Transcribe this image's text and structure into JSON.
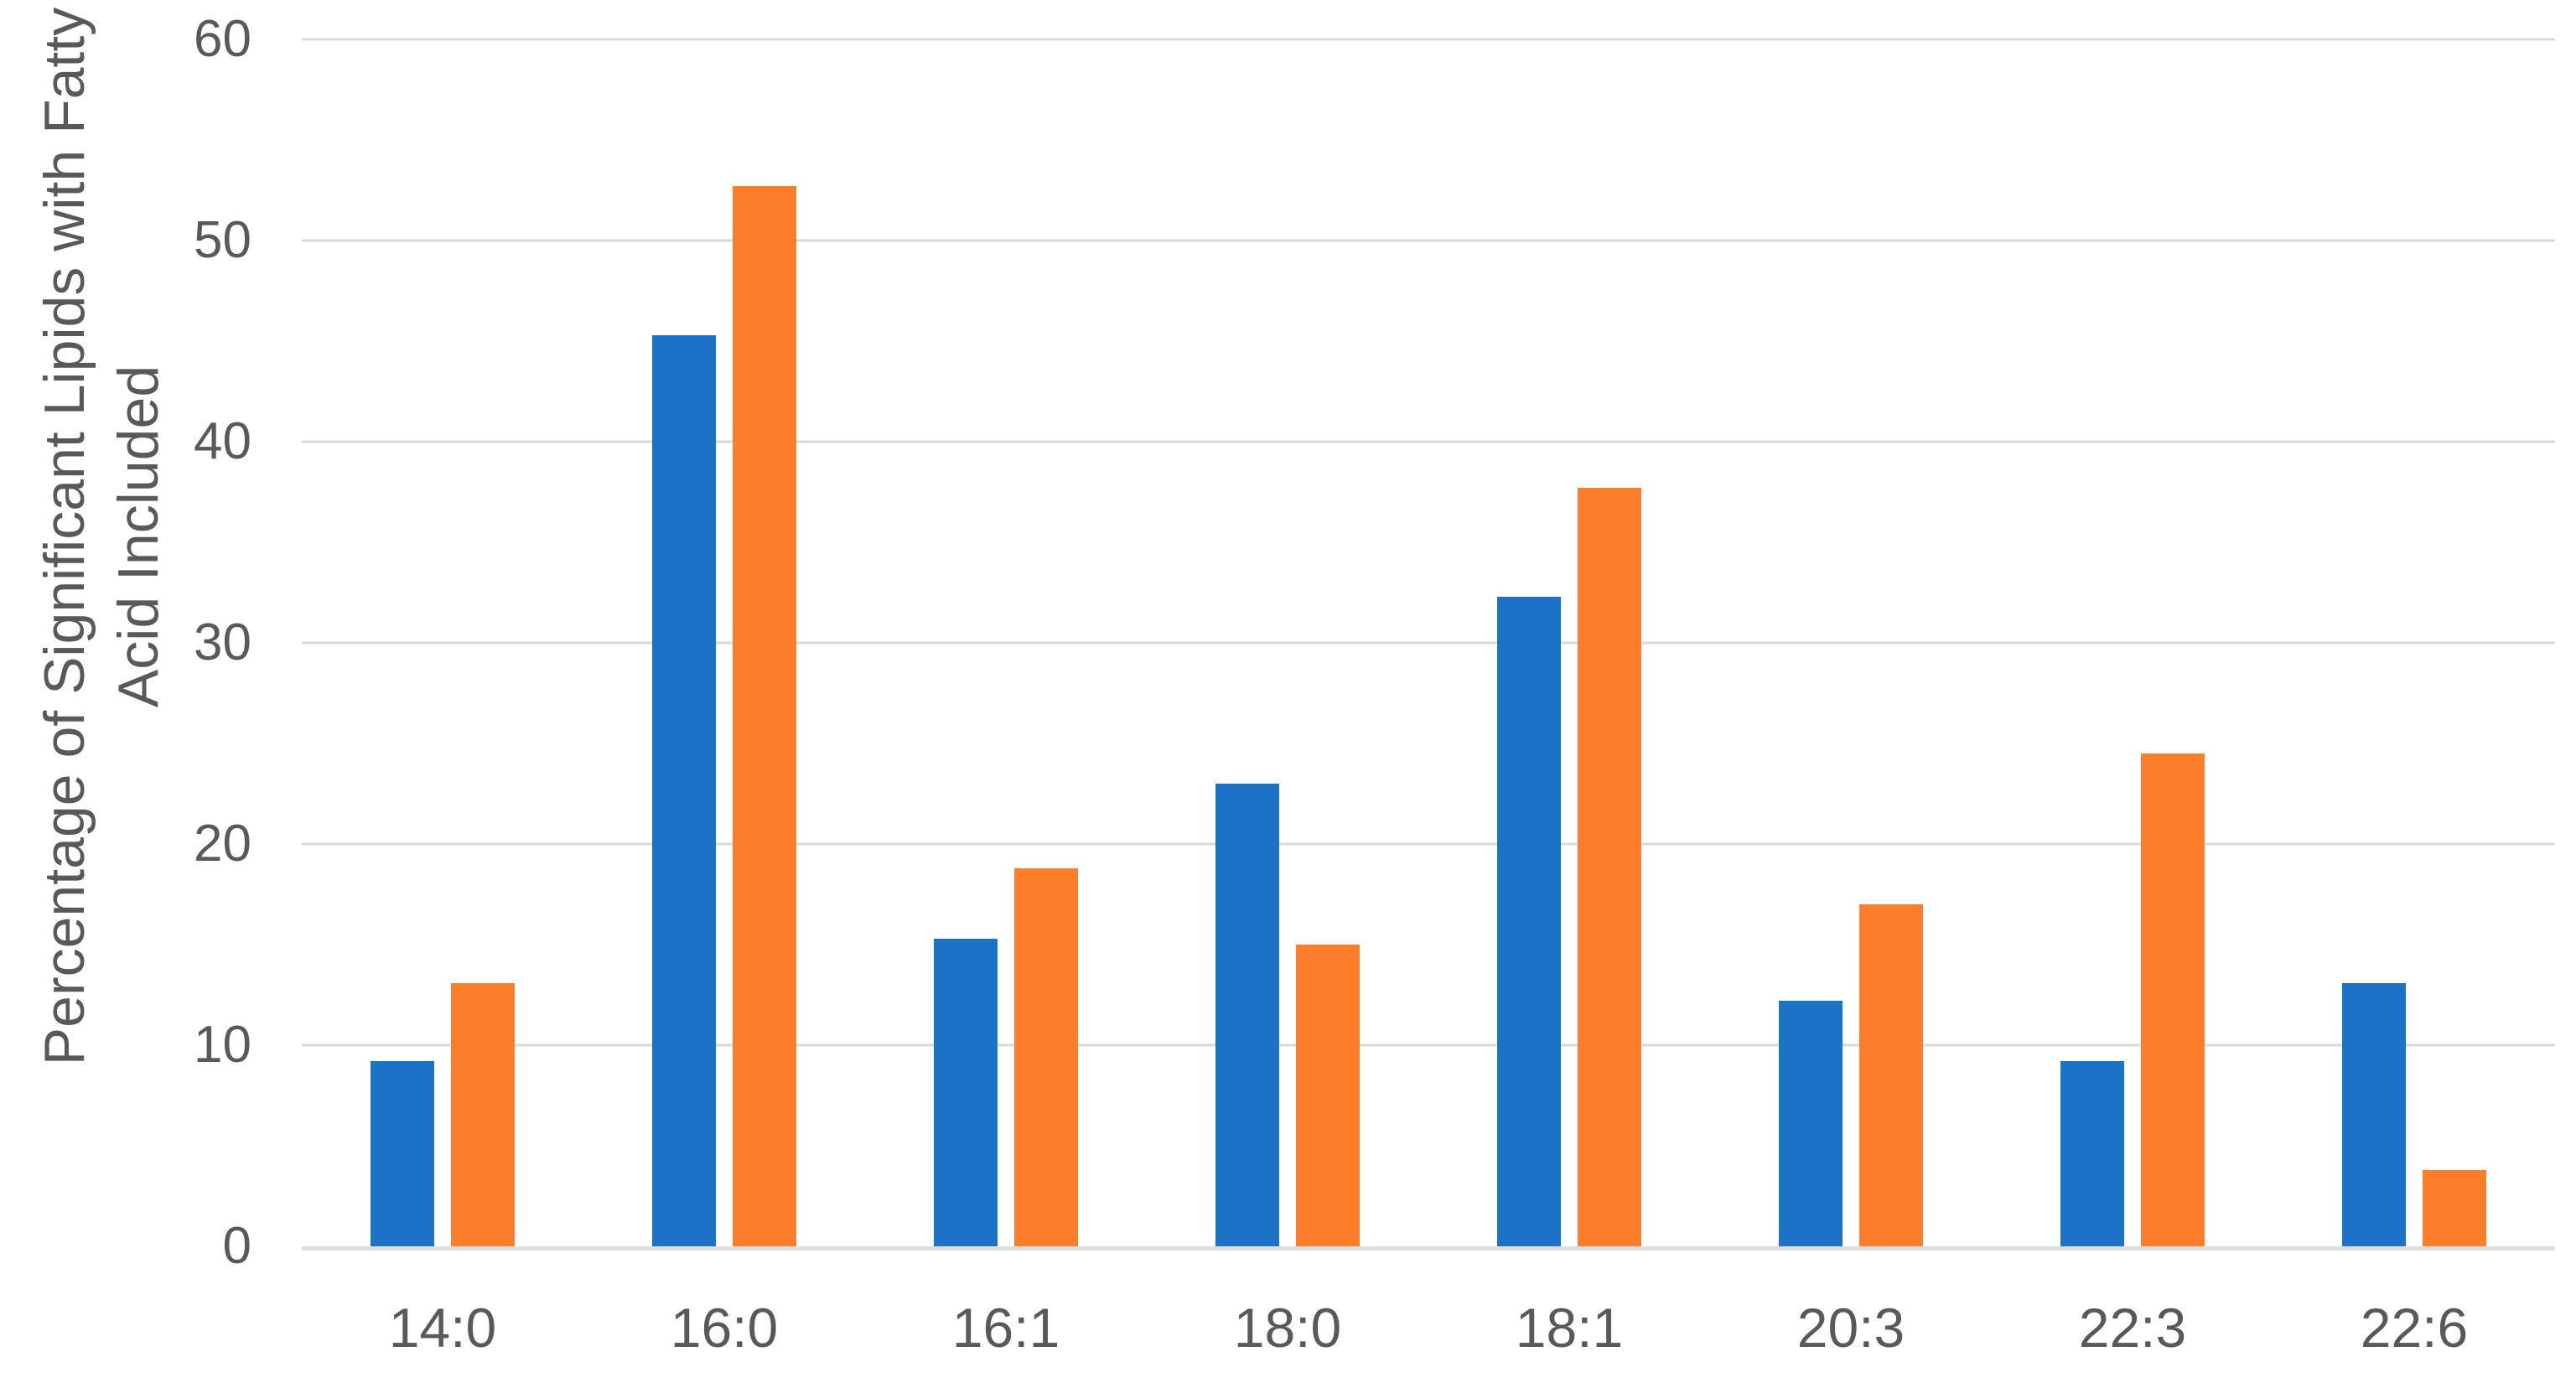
{
  "colors": {
    "background": "#ffffff",
    "text": "#595959",
    "gridline": "#d9d9d9",
    "axis_line": "#e0e0e0",
    "series_blue": "#1b72c6",
    "series_orange": "#fd7e2a"
  },
  "chart_data": {
    "type": "bar",
    "title": "",
    "xlabel": "",
    "ylabel": "Percentage of Significant Lipids with Fatty Acid Included",
    "ylabel_lines": [
      "Percentage of Significant Lipids with Fatty",
      "Acid Included"
    ],
    "categories": [
      "14:0",
      "16:0",
      "16:1",
      "18:0",
      "18:1",
      "20:3",
      "22:3",
      "22:6"
    ],
    "series": [
      {
        "name": "blue",
        "color": "#1b72c6",
        "values": [
          9.2,
          45.3,
          15.3,
          23.0,
          32.3,
          12.2,
          9.2,
          13.1
        ]
      },
      {
        "name": "orange",
        "color": "#fd7e2a",
        "values": [
          13.1,
          52.7,
          18.8,
          15.0,
          37.7,
          17.0,
          24.5,
          3.8
        ]
      }
    ],
    "ylim": [
      0,
      60
    ],
    "yticks": [
      0,
      10,
      20,
      30,
      40,
      50,
      60
    ],
    "grid": "horizontal-only",
    "legend_position": "none"
  }
}
